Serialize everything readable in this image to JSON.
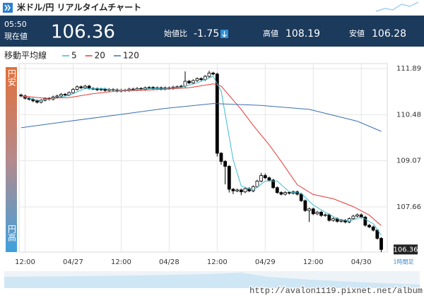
{
  "header": {
    "title": "米ドル/円 リアルタイムチャート",
    "time": "05:50",
    "price_label": "現在値",
    "price": "106.36",
    "change_label": "始値比",
    "change": "-1.75",
    "high_label": "高値",
    "high": "108.19",
    "low_label": "安値",
    "low": "106.28"
  },
  "chart_data": {
    "type": "candlestick",
    "legend_title": "移動平均線",
    "timeframe": "1時間足",
    "top_label": "円安",
    "bottom_label": "円高",
    "up_color": "#ffffff",
    "down_color": "#000000",
    "wick_color": "#000000",
    "grid": true,
    "x": [
      -1,
      0,
      1,
      2,
      3,
      4,
      5,
      6,
      7,
      8,
      9,
      10,
      11,
      12,
      13,
      14,
      15,
      16,
      17,
      18,
      19,
      20,
      21,
      22,
      23,
      24,
      25,
      26,
      27,
      28,
      29,
      30,
      31,
      32,
      33,
      34,
      35,
      36,
      37,
      38,
      39,
      40,
      41,
      42,
      43,
      44,
      45,
      46,
      47,
      48,
      49,
      50,
      51,
      52,
      53,
      54,
      55,
      56,
      57,
      58,
      59,
      60,
      61,
      62,
      63,
      64,
      65,
      66,
      67,
      68,
      69,
      70,
      71,
      72,
      73,
      74,
      75,
      76,
      77,
      78,
      79,
      80,
      81,
      82,
      83,
      84,
      85,
      86,
      87,
      88,
      89
    ],
    "open": [
      111.08,
      111.05,
      110.98,
      110.95,
      110.9,
      110.86,
      110.92,
      110.97,
      110.95,
      111.02,
      111.05,
      111.1,
      111.08,
      111.15,
      111.25,
      111.33,
      111.3,
      111.35,
      111.28,
      111.27,
      111.24,
      111.26,
      111.22,
      111.25,
      111.24,
      111.2,
      111.23,
      111.22,
      111.26,
      111.24,
      111.28,
      111.25,
      111.3,
      111.31,
      111.27,
      111.3,
      111.26,
      111.3,
      111.28,
      111.32,
      111.33,
      111.35,
      111.5,
      111.45,
      111.52,
      111.58,
      111.55,
      111.65,
      111.75,
      111.72,
      109.3,
      109.05,
      108.9,
      108.2,
      108.15,
      108.18,
      108.12,
      108.22,
      108.15,
      108.28,
      108.45,
      108.62,
      108.55,
      108.48,
      108.25,
      108.1,
      108.05,
      108.1,
      108.08,
      108.12,
      108.05,
      107.85,
      107.55,
      107.6,
      107.45,
      107.5,
      107.4,
      107.42,
      107.25,
      107.3,
      107.22,
      107.25,
      107.2,
      107.3,
      107.38,
      107.42,
      107.35,
      107.1,
      107.05,
      106.95,
      106.7
    ],
    "high": [
      111.12,
      111.09,
      111.02,
      110.99,
      110.94,
      110.96,
      111.01,
      111.01,
      111.06,
      111.09,
      111.14,
      111.14,
      111.19,
      111.29,
      111.37,
      111.37,
      111.39,
      111.39,
      111.32,
      111.31,
      111.3,
      111.3,
      111.29,
      111.29,
      111.28,
      111.27,
      111.27,
      111.3,
      111.3,
      111.32,
      111.32,
      111.34,
      111.35,
      111.35,
      111.34,
      111.34,
      111.34,
      111.34,
      111.36,
      111.37,
      111.39,
      111.8,
      111.54,
      111.56,
      111.62,
      111.62,
      111.69,
      111.82,
      111.79,
      111.76,
      109.34,
      109.09,
      108.94,
      108.24,
      108.22,
      108.22,
      108.26,
      108.26,
      108.32,
      108.49,
      108.7,
      108.68,
      108.59,
      108.52,
      108.29,
      108.14,
      108.14,
      108.14,
      108.16,
      108.16,
      108.09,
      107.89,
      107.64,
      107.64,
      107.54,
      107.54,
      107.46,
      107.46,
      107.34,
      107.34,
      107.29,
      107.29,
      107.34,
      107.42,
      107.46,
      107.46,
      107.39,
      107.14,
      107.09,
      106.99,
      106.74
    ],
    "low": [
      111.01,
      110.94,
      110.91,
      110.86,
      110.82,
      110.82,
      110.88,
      110.91,
      110.91,
      110.98,
      111.01,
      111.04,
      111.04,
      111.11,
      111.21,
      111.26,
      111.26,
      111.24,
      111.23,
      111.2,
      111.2,
      111.18,
      111.18,
      111.2,
      111.16,
      111.16,
      111.18,
      111.18,
      111.2,
      111.2,
      111.21,
      111.21,
      111.26,
      111.23,
      111.23,
      111.22,
      111.22,
      111.24,
      111.24,
      111.28,
      111.29,
      111.31,
      111.41,
      111.41,
      111.48,
      111.51,
      111.51,
      111.61,
      111.68,
      109.2,
      108.95,
      108.35,
      108.1,
      108.05,
      108.11,
      108.02,
      108.08,
      108.11,
      108.11,
      108.24,
      108.41,
      108.51,
      108.44,
      108.21,
      108.06,
      108.01,
      108.01,
      108.04,
      108.04,
      108.01,
      107.81,
      107.51,
      107.2,
      107.41,
      107.41,
      107.36,
      107.36,
      107.21,
      107.21,
      107.18,
      107.18,
      107.16,
      107.16,
      107.26,
      107.34,
      107.31,
      107.06,
      107.01,
      106.91,
      106.66,
      106.28
    ],
    "close": [
      111.05,
      110.98,
      110.95,
      110.9,
      110.86,
      110.92,
      110.97,
      110.95,
      111.02,
      111.05,
      111.1,
      111.08,
      111.15,
      111.25,
      111.33,
      111.3,
      111.35,
      111.28,
      111.27,
      111.24,
      111.26,
      111.22,
      111.25,
      111.24,
      111.2,
      111.23,
      111.22,
      111.26,
      111.24,
      111.28,
      111.25,
      111.3,
      111.31,
      111.27,
      111.3,
      111.26,
      111.3,
      111.28,
      111.32,
      111.33,
      111.35,
      111.5,
      111.45,
      111.52,
      111.58,
      111.55,
      111.65,
      111.75,
      111.72,
      109.3,
      109.05,
      108.9,
      108.2,
      108.15,
      108.18,
      108.12,
      108.22,
      108.15,
      108.28,
      108.45,
      108.62,
      108.55,
      108.48,
      108.25,
      108.1,
      108.05,
      108.1,
      108.08,
      108.12,
      108.05,
      107.85,
      107.55,
      107.6,
      107.45,
      107.5,
      107.4,
      107.42,
      107.25,
      107.3,
      107.22,
      107.25,
      107.2,
      107.3,
      107.38,
      107.42,
      107.35,
      107.1,
      107.05,
      106.95,
      106.7,
      106.36
    ],
    "series": [
      {
        "name": "5",
        "color": "#3bbccc",
        "x": [
          -1,
          3,
          7,
          11,
          15,
          19,
          23,
          27,
          31,
          35,
          39,
          43,
          47,
          49,
          50,
          51,
          52,
          54,
          57,
          60,
          63,
          66,
          69,
          72,
          75,
          78,
          81,
          84,
          87,
          89
        ],
        "values": [
          111.05,
          110.92,
          110.96,
          111.07,
          111.28,
          111.28,
          111.23,
          111.23,
          111.27,
          111.28,
          111.31,
          111.45,
          111.65,
          111.2,
          110.5,
          109.8,
          109.1,
          108.3,
          108.17,
          108.45,
          108.45,
          108.12,
          108.08,
          107.72,
          107.5,
          107.3,
          107.23,
          107.35,
          107.15,
          106.8
        ]
      },
      {
        "name": "20",
        "color": "#e53935",
        "x": [
          -1,
          5,
          11,
          17,
          23,
          29,
          35,
          41,
          47,
          49,
          54,
          57,
          61,
          64,
          68,
          72,
          77,
          82,
          86,
          89
        ],
        "values": [
          111.05,
          110.98,
          111.0,
          111.12,
          111.2,
          111.22,
          111.26,
          111.3,
          111.42,
          111.35,
          110.64,
          110.15,
          109.56,
          109.05,
          108.34,
          108.04,
          107.91,
          107.67,
          107.41,
          107.09
        ]
      },
      {
        "name": "120",
        "color": "#3a6fb0",
        "x": [
          -1,
          11,
          23,
          35,
          47,
          59,
          71,
          83,
          89
        ],
        "values": [
          110.08,
          110.28,
          110.47,
          110.67,
          110.82,
          110.76,
          110.64,
          110.28,
          109.97
        ]
      }
    ],
    "xlim": [
      -1.5,
      90.5
    ],
    "xticks": [
      {
        "value": 0,
        "label": "12:00"
      },
      {
        "value": 12,
        "label": "04/27"
      },
      {
        "value": 24,
        "label": "12:00"
      },
      {
        "value": 36,
        "label": "04/28"
      },
      {
        "value": 48,
        "label": "12:00"
      },
      {
        "value": 60,
        "label": "04/29"
      },
      {
        "value": 72,
        "label": "12:00"
      },
      {
        "value": 84,
        "label": "04/30"
      }
    ],
    "ylim": [
      106.28,
      112.04
    ],
    "yticks": [
      111.89,
      110.48,
      109.07,
      107.66
    ]
  },
  "footer": {
    "watermark": "http://avalon1119.pixnet.net/album"
  }
}
